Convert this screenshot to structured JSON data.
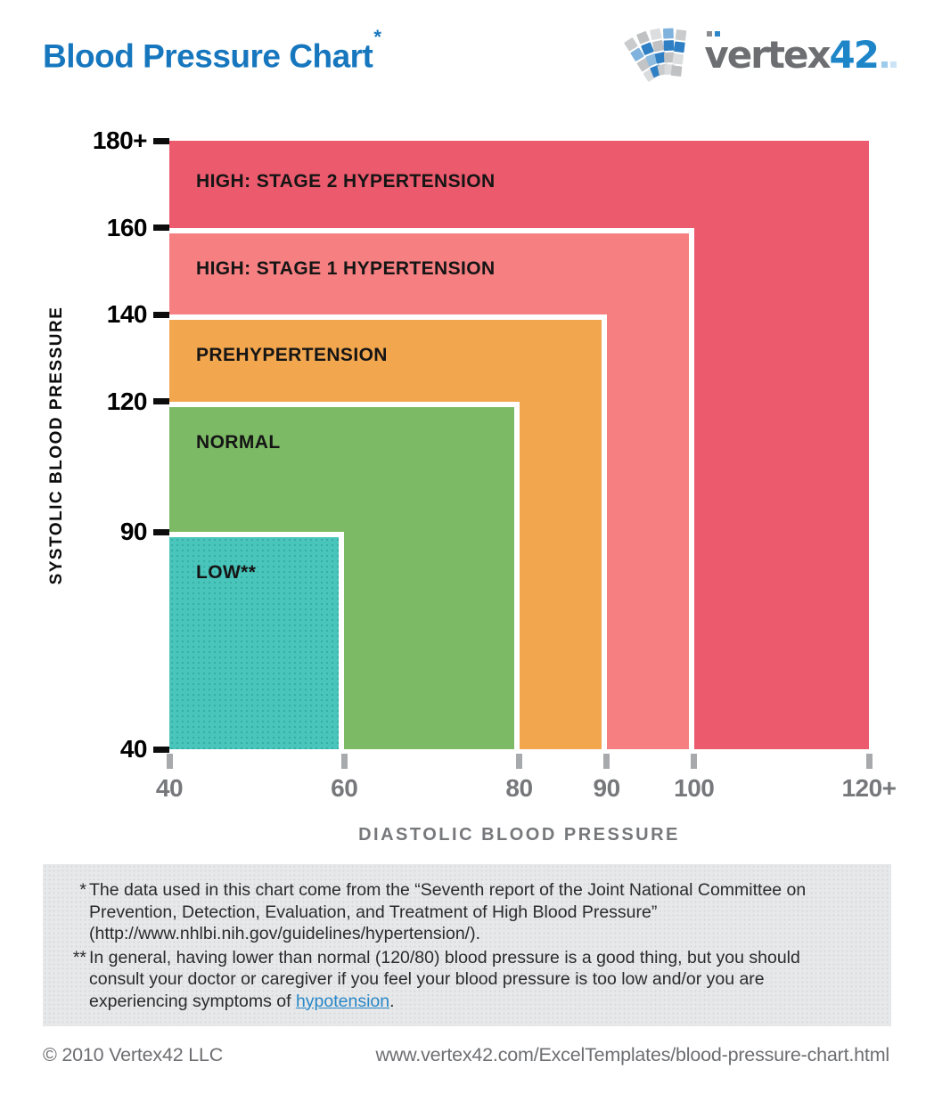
{
  "header": {
    "title": "Blood Pressure Chart",
    "title_asterisk": "*",
    "title_color": "#1777BE",
    "logo": {
      "word": "vertex",
      "number": "42",
      "word_color": "#6D6E71",
      "number_color": "#1E86C8"
    }
  },
  "chart_data": {
    "type": "area",
    "subtype": "nested-range-zones",
    "title": "Blood Pressure Chart",
    "xlabel": "DIASTOLIC BLOOD PRESSURE",
    "ylabel": "SYSTOLIC BLOOD PRESSURE",
    "xlim": [
      40,
      120
    ],
    "ylim": [
      40,
      180
    ],
    "grid": false,
    "legend": "labels drawn inside zones",
    "x_ticks": [
      {
        "v": 40,
        "label": "40"
      },
      {
        "v": 60,
        "label": "60"
      },
      {
        "v": 80,
        "label": "80"
      },
      {
        "v": 90,
        "label": "90"
      },
      {
        "v": 100,
        "label": "100"
      },
      {
        "v": 120,
        "label": "120+"
      }
    ],
    "y_ticks": [
      {
        "v": 40,
        "label": "40"
      },
      {
        "v": 90,
        "label": "90"
      },
      {
        "v": 120,
        "label": "120"
      },
      {
        "v": 140,
        "label": "140"
      },
      {
        "v": 160,
        "label": "160"
      },
      {
        "v": 180,
        "label": "180+"
      }
    ],
    "regions": [
      {
        "id": "stage2-hypertension",
        "label": "HIGH: STAGE 2 HYPERTENSION",
        "diastolic": [
          40,
          120
        ],
        "systolic": [
          40,
          180
        ],
        "open_ended": true,
        "color": "#EC5A6D"
      },
      {
        "id": "stage1-hypertension",
        "label": "HIGH: STAGE 1 HYPERTENSION",
        "diastolic": [
          40,
          100
        ],
        "systolic": [
          40,
          160
        ],
        "open_ended": false,
        "color": "#F57F81"
      },
      {
        "id": "prehypertension",
        "label": "PREHYPERTENSION",
        "diastolic": [
          40,
          90
        ],
        "systolic": [
          40,
          140
        ],
        "open_ended": false,
        "color": "#F2A64E"
      },
      {
        "id": "normal",
        "label": "NORMAL",
        "diastolic": [
          40,
          80
        ],
        "systolic": [
          40,
          120
        ],
        "open_ended": false,
        "color": "#7DBA65"
      },
      {
        "id": "low",
        "label": "LOW**",
        "diastolic": [
          40,
          60
        ],
        "systolic": [
          40,
          90
        ],
        "open_ended": false,
        "color": "#4AC5BB",
        "texture": "dots"
      }
    ]
  },
  "footnotes": {
    "note1": {
      "marker": "*",
      "lines": [
        "The data used in this chart come from the “Seventh report of the Joint National Committee on",
        "Prevention, Detection, Evaluation, and Treatment of High Blood Pressure”",
        "(http://www.nhlbi.nih.gov/guidelines/hypertension/)."
      ]
    },
    "note2": {
      "marker": "**",
      "lines": [
        "In general, having lower than normal (120/80) blood pressure is a good thing, but you should",
        "consult your doctor or caregiver if you feel your blood pressure is too low and/or you are"
      ],
      "last_line": {
        "prefix": "experiencing symptoms of ",
        "link": "hypotension",
        "suffix": "."
      },
      "link_color": "#2787C8"
    }
  },
  "footer": {
    "copyright": "© 2010 Vertex42 LLC",
    "url": "www.vertex42.com/ExcelTemplates/blood-pressure-chart.html"
  }
}
